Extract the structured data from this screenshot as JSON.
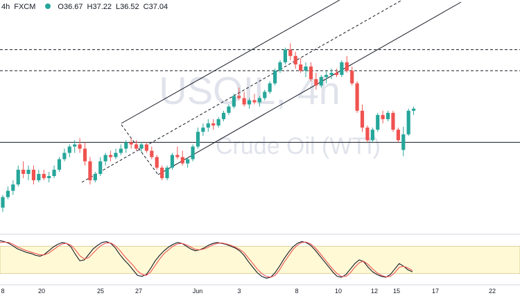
{
  "header": {
    "symbol_interval": "4h",
    "broker": "FXCM",
    "ohlc": {
      "open": "O36.67",
      "high": "H37.22",
      "low": "L36.52",
      "close": "C37.04"
    },
    "status_color": "#26a69a"
  },
  "watermark": {
    "symbol": "USOIL, 4h",
    "description": "Crude Oil (WTI)"
  },
  "chart_data": [
    {
      "type": "candlestick",
      "x_tick_labels": [
        "8",
        "20",
        "25",
        "27",
        "Jun",
        "3",
        "8",
        "10",
        "12",
        "15",
        "17",
        "22"
      ],
      "candles": [
        [
          35.3,
          35.6,
          35.2,
          35.55
        ],
        [
          35.55,
          35.8,
          35.5,
          35.7
        ],
        [
          35.7,
          35.95,
          35.6,
          35.85
        ],
        [
          35.85,
          36.3,
          35.8,
          36.2
        ],
        [
          36.2,
          36.4,
          36.0,
          36.1
        ],
        [
          36.1,
          36.3,
          35.95,
          36.2
        ],
        [
          36.2,
          36.3,
          35.85,
          35.95
        ],
        [
          35.95,
          36.2,
          35.9,
          36.1
        ],
        [
          36.1,
          36.2,
          35.95,
          36.0
        ],
        [
          36.0,
          36.15,
          35.9,
          36.05
        ],
        [
          36.05,
          36.3,
          36.0,
          36.2
        ],
        [
          36.2,
          36.5,
          36.15,
          36.45
        ],
        [
          36.45,
          36.7,
          36.4,
          36.6
        ],
        [
          36.6,
          36.8,
          36.5,
          36.75
        ],
        [
          36.75,
          36.9,
          36.6,
          36.8
        ],
        [
          36.8,
          36.95,
          36.6,
          36.7
        ],
        [
          36.7,
          36.85,
          36.3,
          36.4
        ],
        [
          36.4,
          36.5,
          35.85,
          35.95
        ],
        [
          35.95,
          36.15,
          35.9,
          36.1
        ],
        [
          36.1,
          36.5,
          36.05,
          36.4
        ],
        [
          36.4,
          36.6,
          36.3,
          36.55
        ],
        [
          36.55,
          36.65,
          36.4,
          36.5
        ],
        [
          36.5,
          36.7,
          36.45,
          36.6
        ],
        [
          36.6,
          36.8,
          36.55,
          36.7
        ],
        [
          36.7,
          36.9,
          36.6,
          36.85
        ],
        [
          36.85,
          36.95,
          36.7,
          36.8
        ],
        [
          36.8,
          36.9,
          36.65,
          36.7
        ],
        [
          36.7,
          36.85,
          36.6,
          36.8
        ],
        [
          36.8,
          36.85,
          36.6,
          36.65
        ],
        [
          36.65,
          36.75,
          36.45,
          36.5
        ],
        [
          36.5,
          36.55,
          36.2,
          36.25
        ],
        [
          36.25,
          36.3,
          35.95,
          36.0
        ],
        [
          36.0,
          36.3,
          35.95,
          36.25
        ],
        [
          36.25,
          36.6,
          36.2,
          36.55
        ],
        [
          36.55,
          36.75,
          36.45,
          36.5
        ],
        [
          36.5,
          36.65,
          36.3,
          36.35
        ],
        [
          36.35,
          36.5,
          36.25,
          36.45
        ],
        [
          36.45,
          36.8,
          36.4,
          36.75
        ],
        [
          36.75,
          37.2,
          36.7,
          37.1
        ],
        [
          37.1,
          37.3,
          37.0,
          37.2
        ],
        [
          37.2,
          37.4,
          37.1,
          37.3
        ],
        [
          37.3,
          37.4,
          37.15,
          37.25
        ],
        [
          37.25,
          37.45,
          37.2,
          37.4
        ],
        [
          37.4,
          37.6,
          37.35,
          37.55
        ],
        [
          37.55,
          37.75,
          37.5,
          37.7
        ],
        [
          37.7,
          38.0,
          37.65,
          37.95
        ],
        [
          37.95,
          38.15,
          37.85,
          37.9
        ],
        [
          37.9,
          38.05,
          37.7,
          37.75
        ],
        [
          37.75,
          37.9,
          37.65,
          37.85
        ],
        [
          37.85,
          38.0,
          37.75,
          37.8
        ],
        [
          37.8,
          37.95,
          37.7,
          37.9
        ],
        [
          37.9,
          38.1,
          37.85,
          38.05
        ],
        [
          38.05,
          38.3,
          38.0,
          38.25
        ],
        [
          38.25,
          38.6,
          38.2,
          38.55
        ],
        [
          38.55,
          38.8,
          38.5,
          38.75
        ],
        [
          38.75,
          39.1,
          38.7,
          39.05
        ],
        [
          39.05,
          39.2,
          38.8,
          38.9
        ],
        [
          38.9,
          39.0,
          38.6,
          38.7
        ],
        [
          38.7,
          38.85,
          38.5,
          38.55
        ],
        [
          38.55,
          38.75,
          38.4,
          38.65
        ],
        [
          38.65,
          38.75,
          38.3,
          38.35
        ],
        [
          38.35,
          38.5,
          38.1,
          38.2
        ],
        [
          38.2,
          38.45,
          38.15,
          38.4
        ],
        [
          38.4,
          38.55,
          38.25,
          38.45
        ],
        [
          38.45,
          38.6,
          38.35,
          38.5
        ],
        [
          38.5,
          38.6,
          38.4,
          38.45
        ],
        [
          38.45,
          38.8,
          38.4,
          38.75
        ],
        [
          38.75,
          38.9,
          38.5,
          38.55
        ],
        [
          38.55,
          38.65,
          38.2,
          38.25
        ],
        [
          38.25,
          38.3,
          37.55,
          37.6
        ],
        [
          37.6,
          37.75,
          37.1,
          37.2
        ],
        [
          37.2,
          37.25,
          36.85,
          36.9
        ],
        [
          36.9,
          37.2,
          36.85,
          37.15
        ],
        [
          37.15,
          37.55,
          37.1,
          37.5
        ],
        [
          37.5,
          37.6,
          37.3,
          37.4
        ],
        [
          37.4,
          37.6,
          37.35,
          37.55
        ],
        [
          37.55,
          37.6,
          37.1,
          37.15
        ],
        [
          37.15,
          37.2,
          36.85,
          36.9
        ],
        [
          36.67,
          37.22,
          36.52,
          37.04
        ],
        [
          37.04,
          37.65,
          37.0,
          37.6
        ],
        [
          37.6,
          37.7,
          37.5,
          37.65
        ]
      ],
      "y_range": [
        34.8,
        39.9
      ],
      "support_level": 36.85,
      "dashed_levels": [
        39.05,
        38.55
      ],
      "colors": {
        "up": "#26a69a",
        "down": "#ef5350"
      },
      "grid": false
    },
    {
      "type": "line",
      "indicator": "stochastic",
      "y_range": [
        0,
        100
      ],
      "band": [
        20,
        80
      ],
      "series": [
        {
          "color": "#131722",
          "values": [
            92,
            90,
            86,
            80,
            74,
            70,
            66,
            64,
            60,
            58,
            62,
            70,
            78,
            84,
            88,
            86,
            78,
            62,
            48,
            50,
            62,
            74,
            82,
            88,
            90,
            86,
            76,
            62,
            50,
            40,
            28,
            16,
            14,
            18,
            32,
            48,
            60,
            70,
            78,
            84,
            88,
            86,
            80,
            74,
            70,
            72,
            76,
            82,
            86,
            88,
            86,
            84,
            80,
            76,
            70,
            60,
            46,
            34,
            22,
            14,
            10,
            12,
            22,
            36,
            52,
            66,
            78,
            86,
            90,
            88,
            82,
            72,
            60,
            48,
            36,
            24,
            14,
            12,
            18,
            30,
            42,
            50,
            46,
            34,
            24,
            18,
            14,
            12,
            18,
            30,
            42,
            36,
            28,
            24
          ]
        },
        {
          "color": "#ef5350",
          "values": [
            88,
            89,
            88,
            84,
            78,
            74,
            70,
            67,
            64,
            61,
            61,
            65,
            72,
            79,
            85,
            86,
            82,
            72,
            59,
            52,
            55,
            65,
            75,
            83,
            87,
            87,
            81,
            71,
            59,
            48,
            38,
            26,
            18,
            16,
            24,
            38,
            52,
            64,
            72,
            80,
            85,
            86,
            83,
            78,
            73,
            72,
            74,
            78,
            83,
            86,
            87,
            85,
            82,
            78,
            73,
            66,
            54,
            42,
            30,
            20,
            14,
            12,
            16,
            28,
            44,
            58,
            72,
            82,
            88,
            89,
            85,
            77,
            66,
            54,
            42,
            30,
            20,
            14,
            14,
            22,
            34,
            44,
            47,
            40,
            30,
            22,
            16,
            13,
            14,
            22,
            34,
            36,
            32,
            27
          ]
        }
      ]
    }
  ]
}
